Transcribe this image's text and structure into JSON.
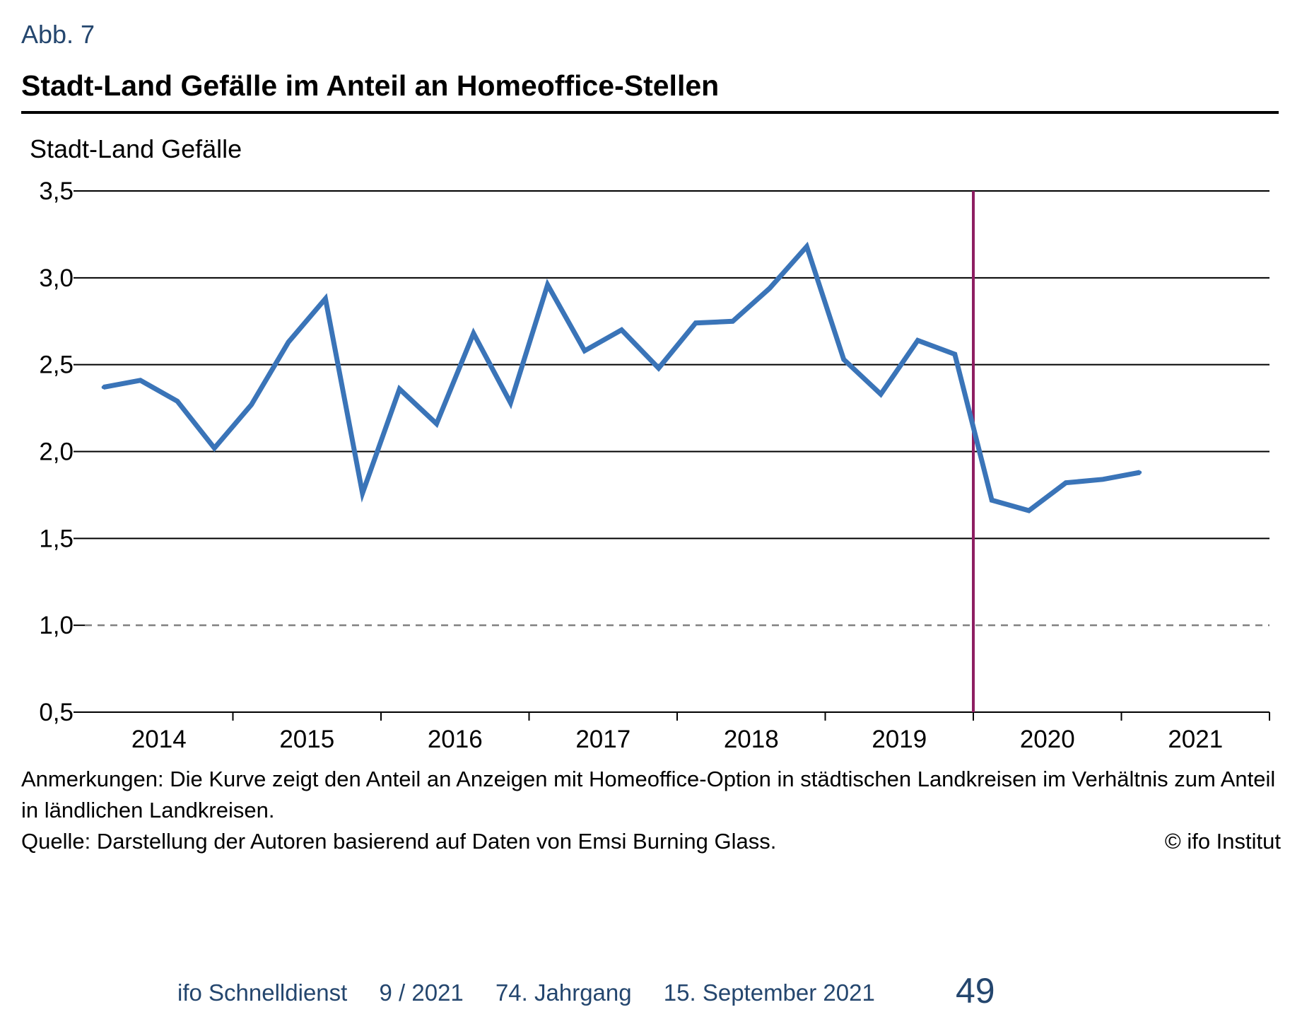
{
  "figure": {
    "label": "Abb. 7",
    "title": "Stadt-Land Gefälle im Anteil an Homeoffice-Stellen"
  },
  "chart_data": {
    "type": "line",
    "title": "Stadt-Land Gefälle im Anteil an Homeoffice-Stellen",
    "xlabel": "",
    "ylabel": "Stadt-Land Gefälle",
    "x_tick_labels": [
      "2014",
      "2015",
      "2016",
      "2017",
      "2018",
      "2019",
      "2020",
      "2021"
    ],
    "y_tick_labels": [
      "3,5",
      "3,0",
      "2,5",
      "2,0",
      "1,5",
      "1,0",
      "0,5"
    ],
    "y_ticks": [
      3.5,
      3.0,
      2.5,
      2.0,
      1.5,
      1.0,
      0.5
    ],
    "ylim": [
      0.5,
      3.5
    ],
    "xlim": [
      2014.0,
      2022.0
    ],
    "grid": true,
    "reference_line": {
      "y": 1.0,
      "style": "dashed"
    },
    "event_line": {
      "x": 2020.0,
      "color": "#8e1e62"
    },
    "series": [
      {
        "color": "#3a74b8",
        "points": [
          {
            "x": 2014.125,
            "y": 2.37
          },
          {
            "x": 2014.375,
            "y": 2.41
          },
          {
            "x": 2014.625,
            "y": 2.29
          },
          {
            "x": 2014.875,
            "y": 2.02
          },
          {
            "x": 2015.125,
            "y": 2.27
          },
          {
            "x": 2015.375,
            "y": 2.63
          },
          {
            "x": 2015.625,
            "y": 2.88
          },
          {
            "x": 2015.875,
            "y": 1.76
          },
          {
            "x": 2016.125,
            "y": 2.36
          },
          {
            "x": 2016.375,
            "y": 2.16
          },
          {
            "x": 2016.625,
            "y": 2.68
          },
          {
            "x": 2016.875,
            "y": 2.28
          },
          {
            "x": 2017.125,
            "y": 2.96
          },
          {
            "x": 2017.375,
            "y": 2.58
          },
          {
            "x": 2017.625,
            "y": 2.7
          },
          {
            "x": 2017.875,
            "y": 2.48
          },
          {
            "x": 2018.125,
            "y": 2.74
          },
          {
            "x": 2018.375,
            "y": 2.75
          },
          {
            "x": 2018.625,
            "y": 2.94
          },
          {
            "x": 2018.875,
            "y": 3.18
          },
          {
            "x": 2019.125,
            "y": 2.53
          },
          {
            "x": 2019.375,
            "y": 2.33
          },
          {
            "x": 2019.625,
            "y": 2.64
          },
          {
            "x": 2019.875,
            "y": 2.56
          },
          {
            "x": 2020.125,
            "y": 1.72
          },
          {
            "x": 2020.375,
            "y": 1.66
          },
          {
            "x": 2020.625,
            "y": 1.82
          },
          {
            "x": 2020.875,
            "y": 1.84
          },
          {
            "x": 2021.125,
            "y": 1.88
          }
        ]
      }
    ]
  },
  "notes": {
    "remarks": "Anmerkungen: Die Kurve zeigt den Anteil an Anzeigen mit Homeoffice-Option in städtischen Landkreisen im Verhältnis zum Anteil in ländlichen Landkreisen.",
    "source": "Quelle: Darstellung der Autoren basierend auf Daten von Emsi Burning Glass.",
    "copyright": "© ifo Institut"
  },
  "footer": {
    "publication": "ifo Schnelldienst",
    "issue": "9 / 2021",
    "volume": "74. Jahrgang",
    "date": "15. September 2021",
    "page_number": "49"
  }
}
